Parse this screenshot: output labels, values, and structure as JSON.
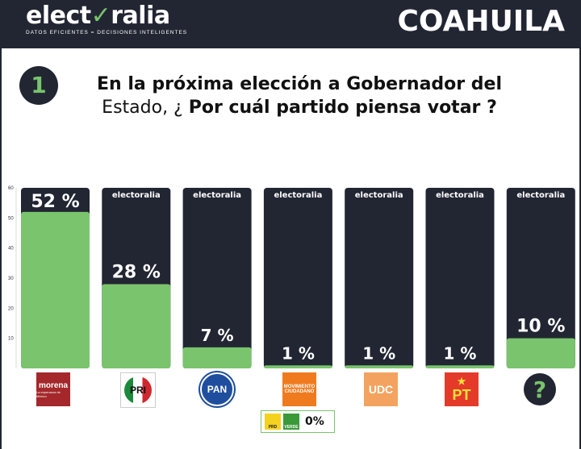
{
  "header": {
    "brand_prefix": "elect",
    "brand_check": "✓",
    "brand_suffix": "ralia",
    "tagline": "DATOS EFICIENTES = DECISIONES INTELIGENTES",
    "region": "COAHUILA"
  },
  "question": {
    "number": "1",
    "line1": "En la próxima elección a Gobernador del",
    "line2_plain": "Estado, ¿ ",
    "line2_emph": "Por cuál partido piensa votar",
    "line2_end": " ?"
  },
  "watermark": "electoralia",
  "chart_data": {
    "type": "bar",
    "categories": [
      "morena",
      "PRI",
      "PAN",
      "MOVIMIENTO CIUDADANO",
      "UDC",
      "PT",
      "?"
    ],
    "values": [
      52,
      28,
      7,
      1,
      1,
      1,
      10
    ],
    "labels": [
      "52 %",
      "28 %",
      "7 %",
      "1 %",
      "1 %",
      "1 %",
      "10 %"
    ],
    "ylim": [
      0,
      60
    ],
    "yticks": [
      10,
      20,
      30,
      40,
      50,
      60
    ],
    "ytick_labels": [
      "10",
      "20",
      "30",
      "40",
      "50",
      "60"
    ],
    "colors": {
      "bar_bg": "#222633",
      "bar_fill": "#79c46d"
    }
  },
  "logos": {
    "morena": "morena",
    "morena_sub": "La esperanza de México",
    "pri": "PRI",
    "pan": "PAN",
    "mc_top": "MOVIMIENTO",
    "mc_bottom": "CIUDADANO",
    "udc": "UDC",
    "pt_star": "★",
    "pt": "PT",
    "unknown": "?"
  },
  "small_parties": {
    "prd": "PRD",
    "verde": "VERDE",
    "value": "0%"
  }
}
